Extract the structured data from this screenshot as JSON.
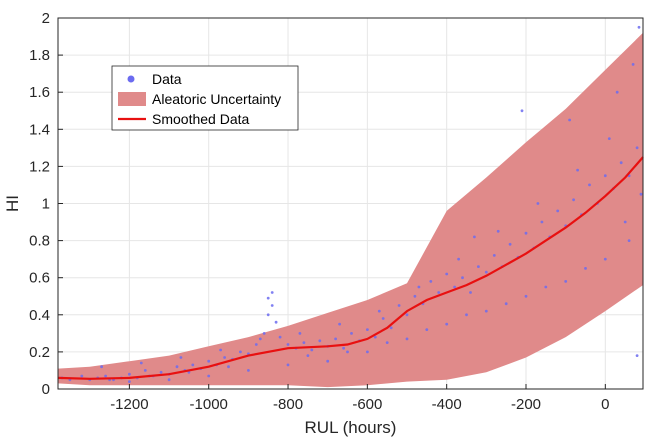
{
  "chart_data": {
    "type": "scatter",
    "xlabel": "RUL (hours)",
    "ylabel": "HI",
    "xlim": [
      -1380,
      95
    ],
    "ylim": [
      0,
      2
    ],
    "grid": true,
    "legend_position": "top-left",
    "x_ticks": [
      -1200,
      -1000,
      -800,
      -600,
      -400,
      -200,
      0
    ],
    "x_tick_labels": [
      "-1200",
      "-1000",
      "-800",
      "-600",
      "-400",
      "-200",
      "0"
    ],
    "y_ticks": [
      0,
      0.2,
      0.4,
      0.6,
      0.8,
      1,
      1.2,
      1.4,
      1.6,
      1.8,
      2
    ],
    "y_tick_labels": [
      "0",
      "0.2",
      "0.4",
      "0.6",
      "0.8",
      "1",
      "1.2",
      "1.4",
      "1.6",
      "1.8",
      "2"
    ],
    "legend": [
      {
        "label": "Data",
        "kind": "marker",
        "color": "#6b6bf0"
      },
      {
        "label": "Aleatoric Uncertainty",
        "kind": "patch",
        "color": "#e08a8a"
      },
      {
        "label": "Smoothed Data",
        "kind": "line",
        "color": "#e81010"
      }
    ],
    "series": [
      {
        "name": "Smoothed Data",
        "type": "line",
        "color": "#e81010",
        "x": [
          -1380,
          -1300,
          -1200,
          -1100,
          -1000,
          -900,
          -800,
          -700,
          -650,
          -600,
          -550,
          -500,
          -450,
          -400,
          -350,
          -300,
          -250,
          -200,
          -150,
          -100,
          -50,
          0,
          50,
          95
        ],
        "y": [
          0.06,
          0.055,
          0.06,
          0.08,
          0.12,
          0.18,
          0.22,
          0.23,
          0.24,
          0.27,
          0.33,
          0.42,
          0.48,
          0.52,
          0.56,
          0.61,
          0.67,
          0.73,
          0.8,
          0.87,
          0.95,
          1.04,
          1.14,
          1.25
        ]
      },
      {
        "name": "Aleatoric Uncertainty",
        "type": "area",
        "color": "#e08a8a",
        "x": [
          -1380,
          -1300,
          -1200,
          -1100,
          -1000,
          -900,
          -800,
          -700,
          -600,
          -500,
          -400,
          -300,
          -200,
          -100,
          0,
          95
        ],
        "upper": [
          0.11,
          0.12,
          0.15,
          0.18,
          0.23,
          0.28,
          0.34,
          0.41,
          0.48,
          0.57,
          0.96,
          1.14,
          1.33,
          1.51,
          1.72,
          1.92
        ],
        "lower": [
          0.03,
          0.02,
          0.02,
          0.02,
          0.02,
          0.02,
          0.02,
          0.01,
          0.02,
          0.04,
          0.05,
          0.09,
          0.17,
          0.28,
          0.42,
          0.56
        ]
      },
      {
        "name": "Data",
        "type": "scatter",
        "color": "#6b6bf0",
        "points": [
          [
            -1370,
            0.06
          ],
          [
            -1350,
            0.05
          ],
          [
            -1320,
            0.07
          ],
          [
            -1300,
            0.05
          ],
          [
            -1280,
            0.06
          ],
          [
            -1260,
            0.07
          ],
          [
            -1240,
            0.05
          ],
          [
            -1220,
            0.06
          ],
          [
            -1200,
            0.08
          ],
          [
            -1180,
            0.06
          ],
          [
            -1160,
            0.1
          ],
          [
            -1140,
            0.07
          ],
          [
            -1120,
            0.09
          ],
          [
            -1100,
            0.08
          ],
          [
            -1080,
            0.12
          ],
          [
            -1060,
            0.1
          ],
          [
            -1040,
            0.13
          ],
          [
            -1020,
            0.11
          ],
          [
            -1000,
            0.15
          ],
          [
            -980,
            0.13
          ],
          [
            -960,
            0.17
          ],
          [
            -940,
            0.16
          ],
          [
            -920,
            0.2
          ],
          [
            -900,
            0.19
          ],
          [
            -880,
            0.24
          ],
          [
            -860,
            0.3
          ],
          [
            -850,
            0.4
          ],
          [
            -840,
            0.45
          ],
          [
            -830,
            0.36
          ],
          [
            -820,
            0.28
          ],
          [
            -800,
            0.24
          ],
          [
            -780,
            0.22
          ],
          [
            -760,
            0.25
          ],
          [
            -740,
            0.21
          ],
          [
            -720,
            0.26
          ],
          [
            -700,
            0.23
          ],
          [
            -680,
            0.27
          ],
          [
            -660,
            0.22
          ],
          [
            -640,
            0.3
          ],
          [
            -620,
            0.26
          ],
          [
            -600,
            0.32
          ],
          [
            -580,
            0.28
          ],
          [
            -560,
            0.38
          ],
          [
            -540,
            0.33
          ],
          [
            -520,
            0.45
          ],
          [
            -500,
            0.4
          ],
          [
            -480,
            0.5
          ],
          [
            -460,
            0.46
          ],
          [
            -440,
            0.58
          ],
          [
            -420,
            0.52
          ],
          [
            -400,
            0.62
          ],
          [
            -380,
            0.55
          ],
          [
            -360,
            0.6
          ],
          [
            -340,
            0.52
          ],
          [
            -320,
            0.66
          ],
          [
            -300,
            0.63
          ],
          [
            -280,
            0.72
          ],
          [
            -260,
            0.66
          ],
          [
            -240,
            0.78
          ],
          [
            -220,
            0.71
          ],
          [
            -200,
            0.84
          ],
          [
            -180,
            0.76
          ],
          [
            -160,
            0.9
          ],
          [
            -140,
            0.82
          ],
          [
            -120,
            0.96
          ],
          [
            -100,
            0.88
          ],
          [
            -80,
            1.02
          ],
          [
            -60,
            0.94
          ],
          [
            -40,
            1.1
          ],
          [
            -20,
            1.0
          ],
          [
            0,
            1.15
          ],
          [
            20,
            1.08
          ],
          [
            40,
            1.22
          ],
          [
            60,
            1.15
          ],
          [
            80,
            1.3
          ],
          [
            -1200,
            0.04
          ],
          [
            -1100,
            0.05
          ],
          [
            -1000,
            0.07
          ],
          [
            -900,
            0.1
          ],
          [
            -800,
            0.13
          ],
          [
            -700,
            0.15
          ],
          [
            -600,
            0.2
          ],
          [
            -500,
            0.27
          ],
          [
            -400,
            0.35
          ],
          [
            -300,
            0.42
          ],
          [
            -200,
            0.5
          ],
          [
            -100,
            0.58
          ],
          [
            0,
            0.7
          ],
          [
            60,
            0.8
          ],
          [
            -850,
            0.49
          ],
          [
            -840,
            0.52
          ],
          [
            -330,
            0.82
          ],
          [
            -210,
            1.5
          ],
          [
            -90,
            1.45
          ],
          [
            30,
            1.6
          ],
          [
            70,
            1.75
          ],
          [
            85,
            1.95
          ],
          [
            80,
            0.18
          ],
          [
            -1270,
            0.12
          ],
          [
            -1170,
            0.14
          ],
          [
            -1070,
            0.17
          ],
          [
            -970,
            0.21
          ],
          [
            -870,
            0.27
          ],
          [
            -770,
            0.3
          ],
          [
            -670,
            0.35
          ],
          [
            -570,
            0.42
          ],
          [
            -470,
            0.55
          ],
          [
            -370,
            0.7
          ],
          [
            -270,
            0.85
          ],
          [
            -170,
            1.0
          ],
          [
            -70,
            1.18
          ],
          [
            10,
            1.35
          ],
          [
            -1250,
            0.05
          ],
          [
            -1150,
            0.07
          ],
          [
            -1050,
            0.09
          ],
          [
            -950,
            0.12
          ],
          [
            -750,
            0.18
          ],
          [
            -650,
            0.2
          ],
          [
            -550,
            0.25
          ],
          [
            -450,
            0.32
          ],
          [
            -350,
            0.4
          ],
          [
            -250,
            0.46
          ],
          [
            -150,
            0.55
          ],
          [
            -50,
            0.65
          ],
          [
            50,
            0.9
          ],
          [
            90,
            1.05
          ]
        ]
      }
    ]
  }
}
